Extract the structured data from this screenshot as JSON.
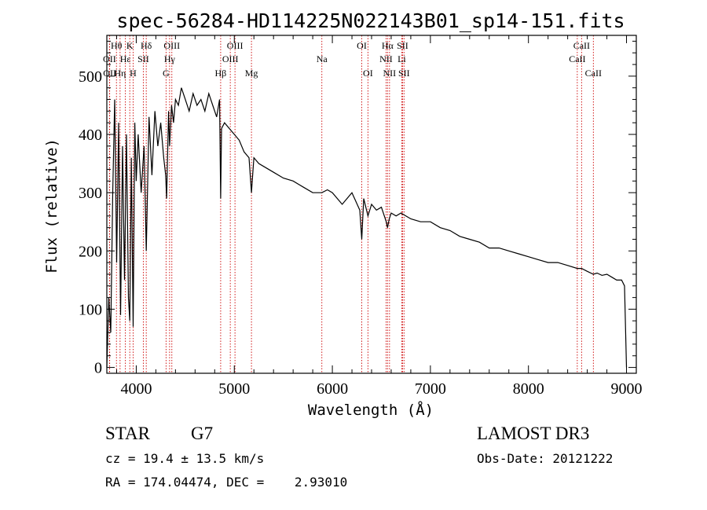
{
  "chart_data": {
    "type": "line",
    "title": "spec-56284-HD114225N022143B01_sp14-151.fits",
    "xlabel": "Wavelength (Å)",
    "ylabel": "Flux (relative)",
    "xlim": [
      3700,
      9100
    ],
    "ylim": [
      -10,
      570
    ],
    "x_ticks": [
      4000,
      5000,
      6000,
      7000,
      8000,
      9000
    ],
    "y_ticks": [
      0,
      100,
      200,
      300,
      400,
      500
    ],
    "series": [
      {
        "name": "flux",
        "x": [
          3700,
          3720,
          3740,
          3760,
          3780,
          3800,
          3820,
          3840,
          3860,
          3880,
          3900,
          3920,
          3934,
          3950,
          3968,
          3985,
          4000,
          4020,
          4050,
          4080,
          4102,
          4130,
          4160,
          4190,
          4220,
          4250,
          4280,
          4300,
          4310,
          4330,
          4340,
          4360,
          4380,
          4400,
          4430,
          4460,
          4500,
          4540,
          4580,
          4620,
          4660,
          4700,
          4740,
          4780,
          4820,
          4850,
          4861,
          4870,
          4900,
          4950,
          5000,
          5050,
          5100,
          5150,
          5175,
          5183,
          5200,
          5250,
          5300,
          5400,
          5500,
          5600,
          5700,
          5800,
          5893,
          5950,
          6000,
          6100,
          6200,
          6280,
          6300,
          6320,
          6363,
          6400,
          6450,
          6500,
          6550,
          6563,
          6580,
          6600,
          6650,
          6700,
          6800,
          6900,
          7000,
          7100,
          7200,
          7300,
          7400,
          7500,
          7600,
          7700,
          7800,
          7900,
          8000,
          8100,
          8200,
          8300,
          8400,
          8498,
          8542,
          8600,
          8662,
          8700,
          8750,
          8800,
          8850,
          8900,
          8950,
          8980,
          9000
        ],
        "y": [
          0,
          120,
          60,
          300,
          460,
          180,
          420,
          90,
          380,
          150,
          400,
          120,
          80,
          360,
          70,
          420,
          320,
          400,
          300,
          380,
          200,
          430,
          330,
          440,
          380,
          420,
          360,
          330,
          290,
          440,
          380,
          450,
          420,
          460,
          450,
          480,
          460,
          440,
          470,
          450,
          460,
          440,
          470,
          450,
          430,
          460,
          290,
          410,
          420,
          410,
          400,
          390,
          370,
          360,
          300,
          320,
          360,
          350,
          345,
          335,
          325,
          320,
          310,
          300,
          300,
          305,
          300,
          280,
          300,
          270,
          220,
          290,
          260,
          280,
          270,
          275,
          250,
          240,
          255,
          265,
          260,
          265,
          255,
          250,
          250,
          240,
          235,
          225,
          220,
          215,
          205,
          205,
          200,
          195,
          190,
          185,
          180,
          180,
          175,
          170,
          170,
          165,
          160,
          162,
          158,
          160,
          155,
          150,
          150,
          140,
          0
        ]
      }
    ],
    "spectral_lines": [
      {
        "label": "Hθ",
        "x": 3798,
        "row": 1
      },
      {
        "label": "OII",
        "x": 3727,
        "row": 2
      },
      {
        "label": "OII",
        "x": 3729,
        "row": 3
      },
      {
        "label": "Hε",
        "x": 3889,
        "row": 2
      },
      {
        "label": "Hη",
        "x": 3835,
        "row": 3
      },
      {
        "label": "K",
        "x": 3934,
        "row": 1
      },
      {
        "label": "H",
        "x": 3968,
        "row": 3
      },
      {
        "label": "SII",
        "x": 4072,
        "row": 2
      },
      {
        "label": "Hδ",
        "x": 4102,
        "row": 1
      },
      {
        "label": "OIII",
        "x": 4363,
        "row": 1
      },
      {
        "label": "Hγ",
        "x": 4340,
        "row": 2
      },
      {
        "label": "G",
        "x": 4304,
        "row": 3
      },
      {
        "label": "Hβ",
        "x": 4861,
        "row": 3
      },
      {
        "label": "OIII",
        "x": 5007,
        "row": 1
      },
      {
        "label": "OIII",
        "x": 4959,
        "row": 2
      },
      {
        "label": "Mg",
        "x": 5175,
        "row": 3
      },
      {
        "label": "Na",
        "x": 5893,
        "row": 2
      },
      {
        "label": "OI",
        "x": 6300,
        "row": 1
      },
      {
        "label": "OI",
        "x": 6363,
        "row": 3
      },
      {
        "label": "Hα",
        "x": 6563,
        "row": 1
      },
      {
        "label": "NII",
        "x": 6548,
        "row": 2
      },
      {
        "label": "NII",
        "x": 6583,
        "row": 3
      },
      {
        "label": "SII",
        "x": 6716,
        "row": 1
      },
      {
        "label": "Li",
        "x": 6708,
        "row": 2
      },
      {
        "label": "SII",
        "x": 6731,
        "row": 3
      },
      {
        "label": "CaII",
        "x": 8542,
        "row": 1
      },
      {
        "label": "CaII",
        "x": 8498,
        "row": 2
      },
      {
        "label": "CaII",
        "x": 8662,
        "row": 3
      }
    ]
  },
  "info": {
    "object_type": "STAR",
    "subclass": "G7",
    "survey": "LAMOST DR3",
    "cz": "cz = 19.4 ± 13.5 km/s",
    "obs_date": "Obs-Date: 20121222",
    "radec": "RA = 174.04474, DEC =    2.93010"
  },
  "colors": {
    "line_marker": "#cc0000",
    "spectrum": "#000000",
    "axes": "#000000"
  }
}
